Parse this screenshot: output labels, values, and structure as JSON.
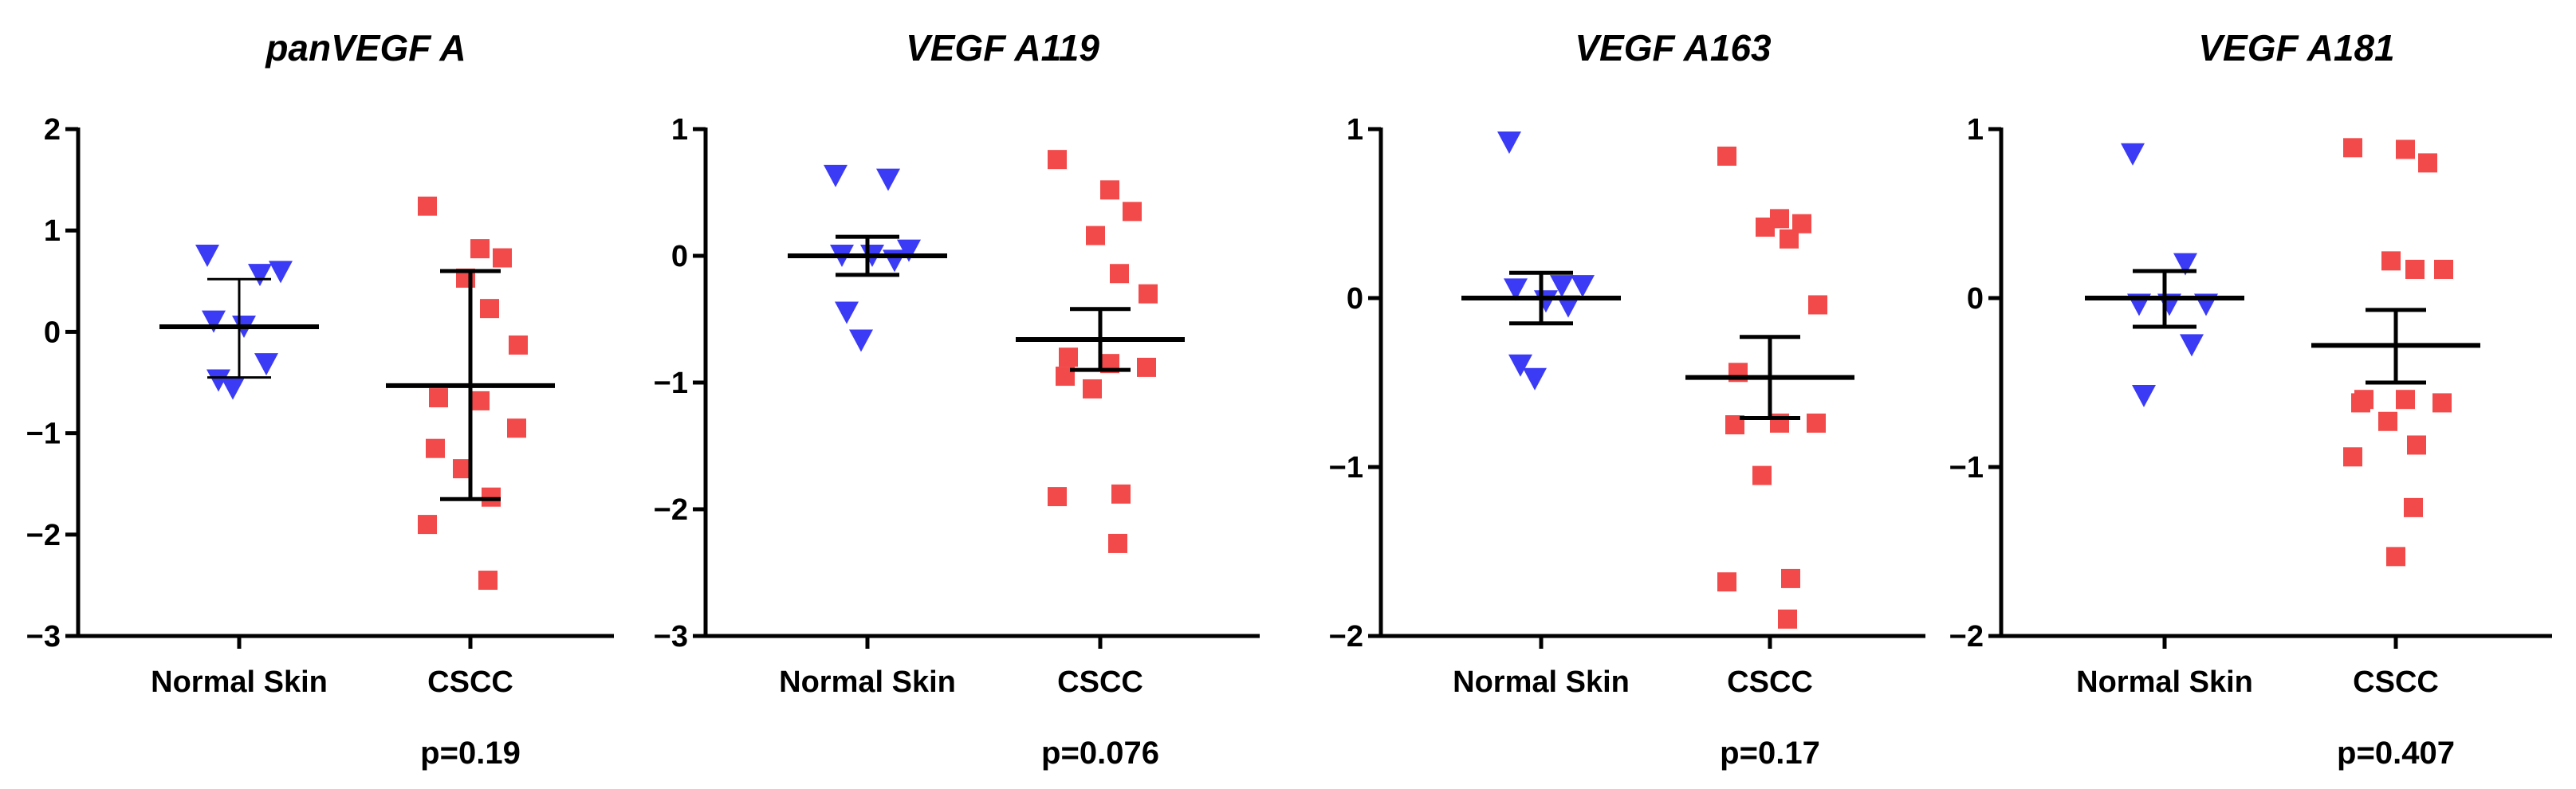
{
  "colors": {
    "normal": "#3b3bf5",
    "cscc": "#f24a4a",
    "axis": "#000000"
  },
  "chart_data": [
    {
      "type": "scatter",
      "title": "panVEGF A",
      "ylim": [
        -3,
        2
      ],
      "yticks": [
        -3,
        -2,
        -1,
        0,
        1,
        2
      ],
      "ytick_labels": [
        "−3",
        "−2",
        "−1",
        "0",
        "1",
        "2"
      ],
      "categories": [
        "Normal Skin",
        "CSCC"
      ],
      "p_value": "p=0.19",
      "series": [
        {
          "name": "Normal Skin",
          "marker": "triangle-down",
          "values": [
            0.75,
            0.56,
            0.59,
            0.1,
            0.05,
            -0.32,
            -0.48,
            -0.56
          ],
          "mean": 0.05,
          "err_low": -0.45,
          "err_high": 0.52
        },
        {
          "name": "CSCC",
          "marker": "square",
          "values": [
            1.24,
            0.82,
            0.73,
            0.53,
            0.23,
            -0.13,
            -0.65,
            -0.68,
            -0.95,
            -1.15,
            -1.35,
            -1.63,
            -1.9,
            -2.45
          ],
          "mean": -0.53,
          "err_low": -1.65,
          "err_high": 0.6
        }
      ]
    },
    {
      "type": "scatter",
      "title": "VEGF A119",
      "ylim": [
        -3,
        1
      ],
      "yticks": [
        -3,
        -2,
        -1,
        0,
        1
      ],
      "ytick_labels": [
        "−3",
        "−2",
        "−1",
        "0",
        "1"
      ],
      "categories": [
        "Normal Skin",
        "CSCC"
      ],
      "p_value": "p=0.076",
      "series": [
        {
          "name": "Normal Skin",
          "marker": "triangle-down",
          "values": [
            0.63,
            0.6,
            0.04,
            0.0,
            0.0,
            -0.04,
            -0.45,
            -0.67
          ],
          "mean": 0.0,
          "err_low": -0.15,
          "err_high": 0.15
        },
        {
          "name": "CSCC",
          "marker": "square",
          "values": [
            0.76,
            0.52,
            0.35,
            0.16,
            -0.14,
            -0.3,
            -0.8,
            -0.85,
            -0.88,
            -0.95,
            -1.05,
            -1.88,
            -1.9,
            -2.27
          ],
          "mean": -0.66,
          "err_low": -0.9,
          "err_high": -0.42
        }
      ]
    },
    {
      "type": "scatter",
      "title": "VEGF A163",
      "ylim": [
        -2,
        1
      ],
      "yticks": [
        -2,
        -1,
        0,
        1
      ],
      "ytick_labels": [
        "−2",
        "−1",
        "0",
        "1"
      ],
      "categories": [
        "Normal Skin",
        "CSCC"
      ],
      "p_value": "p=0.17",
      "series": [
        {
          "name": "Normal Skin",
          "marker": "triangle-down",
          "values": [
            0.92,
            0.07,
            0.07,
            0.05,
            -0.02,
            -0.05,
            -0.4,
            -0.48
          ],
          "mean": 0.0,
          "err_low": -0.15,
          "err_high": 0.15
        },
        {
          "name": "CSCC",
          "marker": "square",
          "values": [
            0.84,
            0.47,
            0.44,
            0.42,
            0.35,
            -0.04,
            -0.44,
            -0.74,
            -0.74,
            -0.75,
            -1.05,
            -1.66,
            -1.68,
            -1.9
          ],
          "mean": -0.47,
          "err_low": -0.71,
          "err_high": -0.23
        }
      ]
    },
    {
      "type": "scatter",
      "title": "VEGF A181",
      "ylim": [
        -2,
        1
      ],
      "yticks": [
        -2,
        -1,
        0,
        1
      ],
      "ytick_labels": [
        "−2",
        "−1",
        "0",
        "1"
      ],
      "categories": [
        "Normal Skin",
        "CSCC"
      ],
      "p_value": "p=0.407",
      "series": [
        {
          "name": "Normal Skin",
          "marker": "triangle-down",
          "values": [
            0.85,
            0.2,
            -0.04,
            -0.04,
            -0.04,
            -0.28,
            -0.58
          ],
          "mean": 0.0,
          "err_low": -0.17,
          "err_high": 0.16
        },
        {
          "name": "CSCC",
          "marker": "square",
          "values": [
            0.89,
            0.88,
            0.8,
            0.22,
            0.17,
            0.17,
            -0.6,
            -0.6,
            -0.62,
            -0.62,
            -0.73,
            -0.87,
            -0.94,
            -1.24,
            -1.53
          ],
          "mean": -0.28,
          "err_low": -0.5,
          "err_high": -0.07
        }
      ]
    }
  ]
}
